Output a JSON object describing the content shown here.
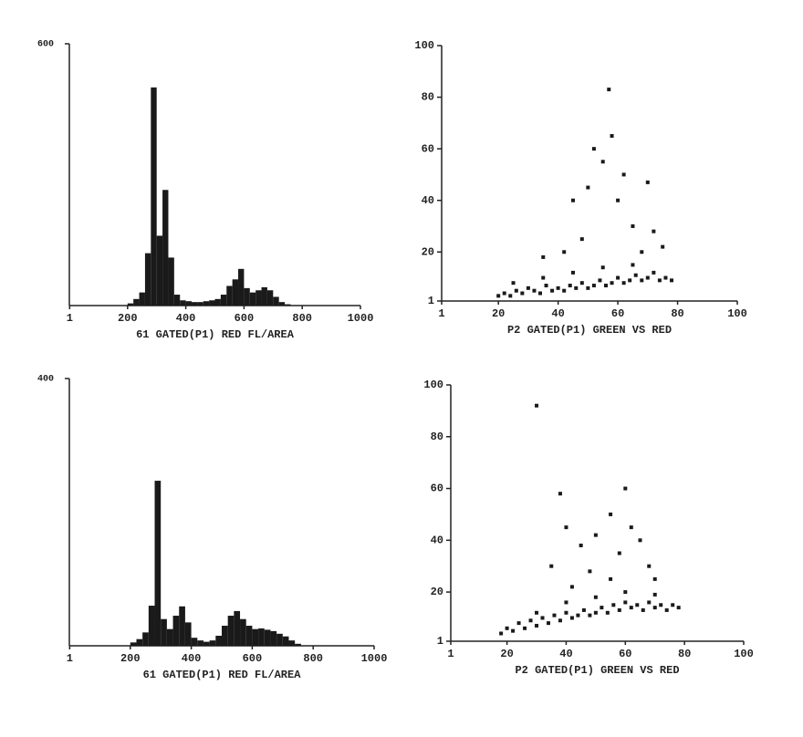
{
  "chart_data": [
    {
      "type": "histogram",
      "xlabel": "61 GATED(P1) RED FL/AREA",
      "color": "#1a1a1a",
      "bins": [
        0,
        20,
        40,
        60,
        80,
        100,
        120,
        140,
        160,
        180,
        200,
        220,
        240,
        260,
        280,
        300,
        320,
        340,
        360,
        380,
        400,
        420,
        440,
        460,
        480,
        500,
        520,
        540,
        560,
        580,
        600,
        620,
        640,
        660,
        680,
        700,
        720,
        740,
        760,
        780,
        800,
        820,
        840,
        860,
        880,
        900,
        920,
        940,
        960,
        980,
        1000
      ],
      "counts": [
        0,
        0,
        0,
        0,
        0,
        0,
        0,
        0,
        0,
        0,
        5,
        15,
        30,
        120,
        500,
        160,
        265,
        110,
        25,
        12,
        10,
        8,
        8,
        10,
        12,
        15,
        25,
        45,
        60,
        84,
        40,
        30,
        35,
        42,
        35,
        20,
        8,
        3,
        0,
        0,
        0,
        0,
        0,
        0,
        0,
        0,
        0,
        0,
        0,
        0
      ],
      "xlim": [
        0,
        1000
      ],
      "xticks": [
        1,
        200,
        400,
        600,
        800,
        1000
      ],
      "ylim": [
        0,
        600
      ],
      "yticks": [
        600
      ]
    },
    {
      "type": "scatter",
      "xlabel": "P2 GATED(P1) GREEN VS RED",
      "color": "#1a1a1a",
      "x": [
        20,
        22,
        24,
        26,
        28,
        30,
        32,
        34,
        36,
        38,
        40,
        42,
        44,
        46,
        48,
        50,
        52,
        54,
        56,
        58,
        60,
        62,
        64,
        66,
        68,
        70,
        72,
        74,
        76,
        78,
        25,
        35,
        45,
        55,
        65,
        35,
        45,
        50,
        52,
        55,
        57,
        58,
        60,
        62,
        65,
        70,
        72,
        75,
        48,
        42,
        68
      ],
      "y": [
        3,
        4,
        3,
        5,
        4,
        6,
        5,
        4,
        7,
        5,
        6,
        5,
        7,
        6,
        8,
        6,
        7,
        9,
        7,
        8,
        10,
        8,
        9,
        11,
        9,
        10,
        12,
        9,
        10,
        9,
        8,
        10,
        12,
        14,
        15,
        18,
        40,
        45,
        60,
        55,
        83,
        65,
        40,
        50,
        30,
        47,
        28,
        22,
        25,
        20,
        20
      ],
      "xlim": [
        1,
        100
      ],
      "xticks": [
        1,
        20,
        40,
        60,
        80,
        100
      ],
      "ylim": [
        1,
        100
      ],
      "yticks": [
        1,
        20,
        40,
        60,
        80,
        100
      ]
    },
    {
      "type": "histogram",
      "xlabel": "61 GATED(P1) RED FL/AREA",
      "color": "#1a1a1a",
      "bins": [
        0,
        20,
        40,
        60,
        80,
        100,
        120,
        140,
        160,
        180,
        200,
        220,
        240,
        260,
        280,
        300,
        320,
        340,
        360,
        380,
        400,
        420,
        440,
        460,
        480,
        500,
        520,
        540,
        560,
        580,
        600,
        620,
        640,
        660,
        680,
        700,
        720,
        740,
        760,
        780,
        800,
        820,
        840,
        860,
        880,
        900,
        920,
        940,
        960,
        980,
        1000
      ],
      "counts": [
        0,
        0,
        0,
        0,
        0,
        0,
        0,
        0,
        0,
        0,
        5,
        10,
        20,
        60,
        247,
        40,
        25,
        45,
        59,
        35,
        12,
        8,
        6,
        8,
        15,
        30,
        45,
        52,
        40,
        30,
        25,
        26,
        24,
        22,
        18,
        14,
        8,
        3,
        0,
        0,
        0,
        0,
        0,
        0,
        0,
        0,
        0,
        0,
        0,
        0
      ],
      "xlim": [
        0,
        1000
      ],
      "xticks": [
        1,
        200,
        400,
        600,
        800,
        1000
      ],
      "ylim": [
        0,
        400
      ],
      "yticks": [
        400
      ]
    },
    {
      "type": "scatter",
      "xlabel": "P2 GATED(P1) GREEN VS RED",
      "color": "#1a1a1a",
      "x": [
        18,
        20,
        22,
        24,
        26,
        28,
        30,
        32,
        34,
        36,
        38,
        40,
        42,
        44,
        46,
        48,
        50,
        52,
        54,
        56,
        58,
        60,
        62,
        64,
        66,
        68,
        70,
        72,
        74,
        76,
        78,
        30,
        40,
        50,
        60,
        70,
        35,
        40,
        45,
        50,
        55,
        58,
        60,
        62,
        65,
        68,
        70,
        48,
        42,
        55,
        30,
        38
      ],
      "y": [
        4,
        6,
        5,
        8,
        6,
        9,
        7,
        10,
        8,
        11,
        9,
        12,
        10,
        11,
        13,
        11,
        12,
        14,
        12,
        15,
        13,
        16,
        14,
        15,
        13,
        16,
        14,
        15,
        13,
        15,
        14,
        12,
        16,
        18,
        20,
        19,
        30,
        45,
        38,
        42,
        50,
        35,
        60,
        45,
        40,
        30,
        25,
        28,
        22,
        25,
        92,
        58
      ],
      "xlim": [
        1,
        100
      ],
      "xticks": [
        1,
        20,
        40,
        60,
        80,
        100
      ],
      "ylim": [
        1,
        100
      ],
      "yticks": [
        1,
        20,
        40,
        60,
        80,
        100
      ]
    }
  ]
}
